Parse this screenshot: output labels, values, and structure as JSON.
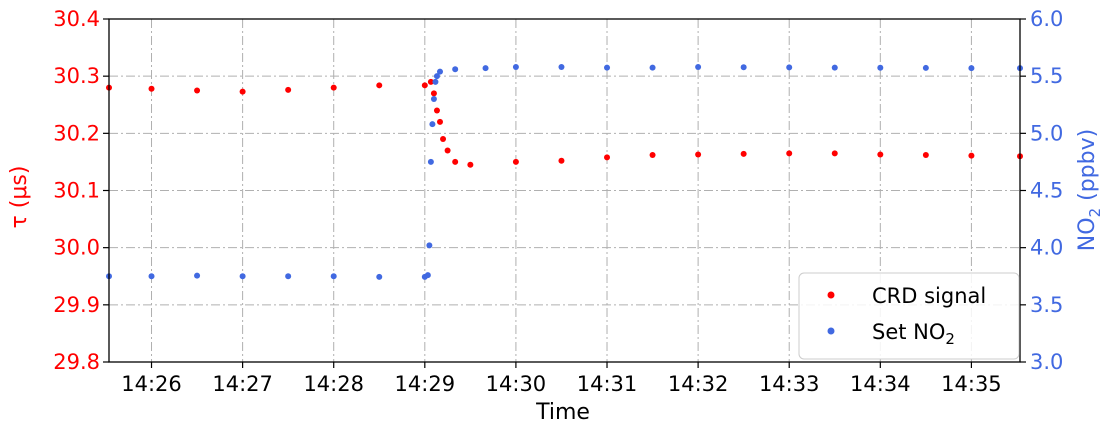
{
  "chart_data": {
    "type": "scatter",
    "xlabel": "Time",
    "ylabel_left": "τ (μs)",
    "ylabel_right": {
      "base": "NO",
      "sub": "2",
      "rest": " (ppbv)"
    },
    "x_ticks": [
      "14:26",
      "14:27",
      "14:28",
      "14:29",
      "14:30",
      "14:31",
      "14:32",
      "14:33",
      "14:34",
      "14:35"
    ],
    "xlim": [
      "14:25:32",
      "14:35:32"
    ],
    "ylim_left": [
      29.8,
      30.4
    ],
    "y_ticks_left": [
      "29.8",
      "29.9",
      "30.0",
      "30.1",
      "30.2",
      "30.3",
      "30.4"
    ],
    "ylim_right": [
      3.0,
      6.0
    ],
    "y_ticks_right": [
      "3.0",
      "3.5",
      "4.0",
      "4.5",
      "5.0",
      "5.5",
      "6.0"
    ],
    "grid": true,
    "legend_position": "bottom-right",
    "colors": {
      "left_axis": "#ff0000",
      "right_axis": "#4169e1",
      "grid": "#b0b0b0"
    },
    "series": [
      {
        "name": "CRD signal",
        "axis": "left",
        "color": "#ff0000",
        "points": [
          [
            "14:25:32",
            30.28
          ],
          [
            "14:26:00",
            30.278
          ],
          [
            "14:26:30",
            30.275
          ],
          [
            "14:27:00",
            30.273
          ],
          [
            "14:27:30",
            30.276
          ],
          [
            "14:28:00",
            30.28
          ],
          [
            "14:28:30",
            30.284
          ],
          [
            "14:29:00",
            30.284
          ],
          [
            "14:29:04",
            30.29
          ],
          [
            "14:29:06",
            30.27
          ],
          [
            "14:29:08",
            30.24
          ],
          [
            "14:29:10",
            30.22
          ],
          [
            "14:29:12",
            30.19
          ],
          [
            "14:29:15",
            30.17
          ],
          [
            "14:29:20",
            30.15
          ],
          [
            "14:29:30",
            30.145
          ],
          [
            "14:30:00",
            30.15
          ],
          [
            "14:30:30",
            30.152
          ],
          [
            "14:31:00",
            30.158
          ],
          [
            "14:31:30",
            30.162
          ],
          [
            "14:32:00",
            30.163
          ],
          [
            "14:32:30",
            30.164
          ],
          [
            "14:33:00",
            30.165
          ],
          [
            "14:33:30",
            30.165
          ],
          [
            "14:34:00",
            30.163
          ],
          [
            "14:34:30",
            30.162
          ],
          [
            "14:35:00",
            30.161
          ],
          [
            "14:35:32",
            30.16
          ]
        ]
      },
      {
        "name": "Set NO2",
        "legend_label": {
          "base": "Set NO",
          "sub": "2"
        },
        "axis": "right",
        "color": "#4169e1",
        "points": [
          [
            "14:25:32",
            3.75
          ],
          [
            "14:26:00",
            3.75
          ],
          [
            "14:26:30",
            3.755
          ],
          [
            "14:27:00",
            3.75
          ],
          [
            "14:27:30",
            3.75
          ],
          [
            "14:28:00",
            3.75
          ],
          [
            "14:28:30",
            3.745
          ],
          [
            "14:29:00",
            3.745
          ],
          [
            "14:29:02",
            3.76
          ],
          [
            "14:29:03",
            4.02
          ],
          [
            "14:29:04",
            4.75
          ],
          [
            "14:29:05",
            5.08
          ],
          [
            "14:29:06",
            5.3
          ],
          [
            "14:29:07",
            5.45
          ],
          [
            "14:29:08",
            5.5
          ],
          [
            "14:29:10",
            5.54
          ],
          [
            "14:29:20",
            5.56
          ],
          [
            "14:29:40",
            5.57
          ],
          [
            "14:30:00",
            5.58
          ],
          [
            "14:30:30",
            5.58
          ],
          [
            "14:31:00",
            5.575
          ],
          [
            "14:31:30",
            5.575
          ],
          [
            "14:32:00",
            5.58
          ],
          [
            "14:32:30",
            5.578
          ],
          [
            "14:33:00",
            5.577
          ],
          [
            "14:33:30",
            5.575
          ],
          [
            "14:34:00",
            5.574
          ],
          [
            "14:34:30",
            5.572
          ],
          [
            "14:35:00",
            5.57
          ],
          [
            "14:35:32",
            5.57
          ]
        ]
      }
    ]
  }
}
